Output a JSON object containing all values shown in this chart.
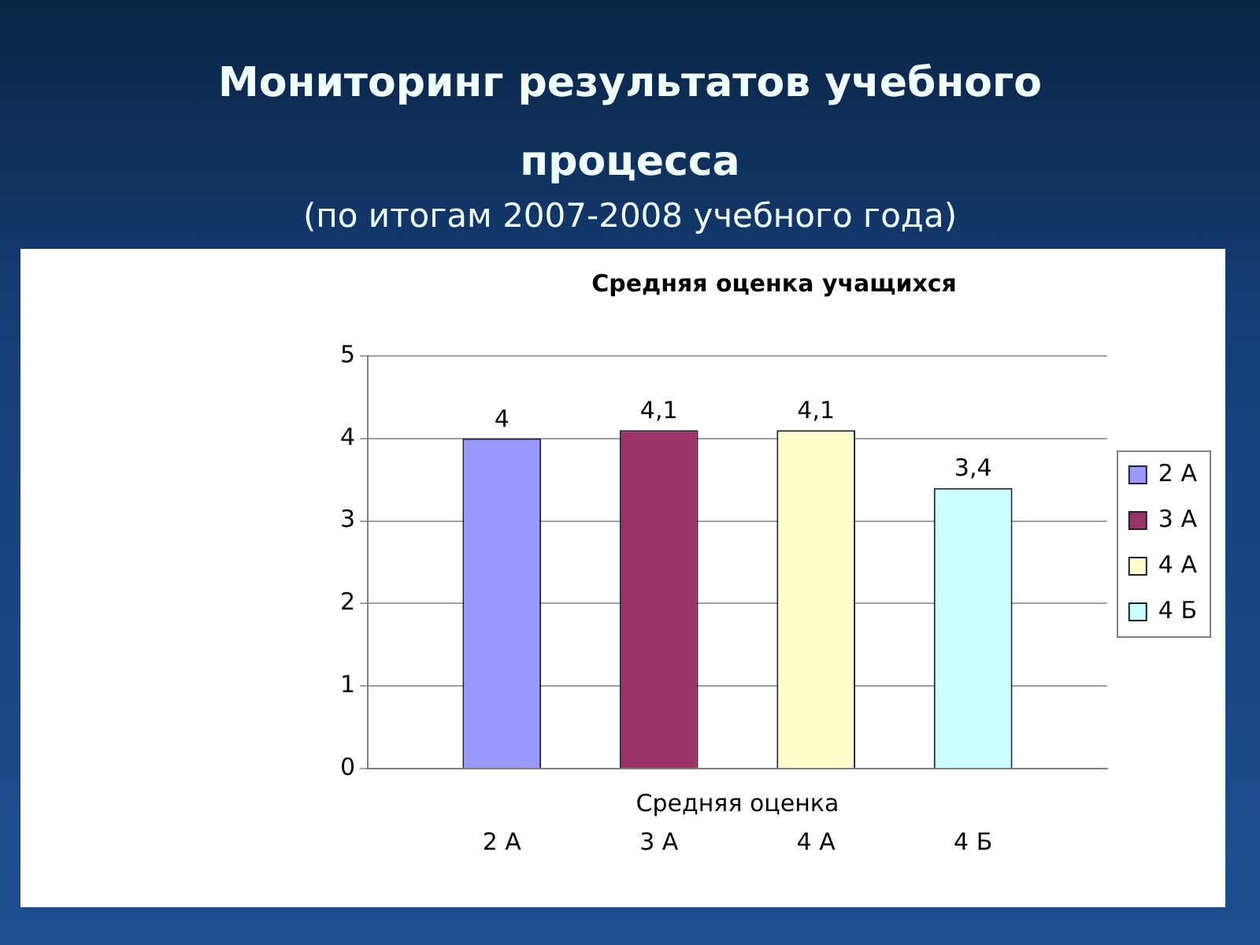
{
  "chart_data": {
    "type": "bar",
    "title": "Мониторинг результатов учебного процесса",
    "subtitle": "(по итогам 2007-2008 учебного года)",
    "annotations": [
      "Средняя оценка учащихся"
    ],
    "categories": [
      "Средняя оценка"
    ],
    "series": [
      {
        "name": "2 А",
        "color": "#9999ff",
        "values": [
          4
        ],
        "value_labels": [
          "4"
        ]
      },
      {
        "name": "3 А",
        "color": "#993366",
        "values": [
          4.1
        ],
        "value_labels": [
          "4,1"
        ]
      },
      {
        "name": "4 А",
        "color": "#ffffcc",
        "values": [
          4.1
        ],
        "value_labels": [
          "4,1"
        ]
      },
      {
        "name": "4 Б",
        "color": "#ccffff",
        "values": [
          3.4
        ],
        "value_labels": [
          "3,4"
        ]
      }
    ],
    "ylim": [
      0,
      5
    ],
    "yticks": [
      0,
      1,
      2,
      3,
      4,
      5
    ],
    "grid": "y",
    "legend": "right"
  }
}
